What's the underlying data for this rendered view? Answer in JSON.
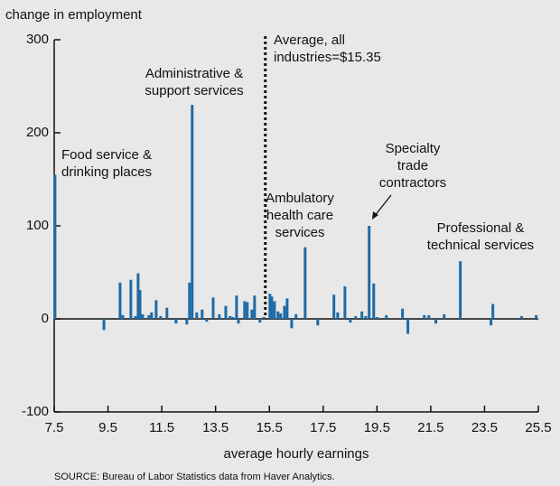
{
  "chart_data": {
    "type": "bar",
    "y_axis_label": "change in employment",
    "x_axis_label": "average hourly earnings",
    "source": "SOURCE: Bureau of Labor Statistics data from Haver Analytics.",
    "color": "#1f6aa5",
    "xlim": [
      7.5,
      25.5
    ],
    "xticks": [
      7.5,
      9.5,
      11.5,
      13.5,
      15.5,
      17.5,
      19.5,
      21.5,
      23.5,
      25.5
    ],
    "ylim": [
      -100,
      300
    ],
    "yticks": [
      -100,
      0,
      100,
      200,
      300
    ],
    "average_x": 15.35,
    "annotations": [
      [
        "Food service &",
        "drinking places"
      ],
      [
        "Administrative &",
        "support services"
      ],
      [
        "Average, all",
        "industries=$15.35"
      ],
      [
        "Ambulatory",
        "health care",
        "services"
      ],
      [
        "Specialty",
        "trade",
        "contractors"
      ],
      [
        "Professional &",
        "technical services"
      ]
    ],
    "x": [
      7.53,
      8.54,
      9.35,
      9.95,
      10.05,
      10.35,
      10.52,
      10.62,
      10.69,
      10.79,
      11.02,
      11.12,
      11.29,
      11.46,
      11.69,
      12.03,
      12.43,
      12.53,
      12.63,
      12.8,
      13.0,
      13.17,
      13.41,
      13.64,
      13.88,
      14.04,
      14.14,
      14.28,
      14.35,
      14.58,
      14.68,
      14.85,
      14.95,
      15.15,
      15.29,
      15.52,
      15.59,
      15.69,
      15.82,
      15.92,
      16.06,
      16.16,
      16.33,
      16.49,
      16.83,
      17.3,
      17.9,
      18.04,
      18.31,
      18.51,
      18.71,
      18.94,
      19.08,
      19.21,
      19.38,
      19.51,
      19.85,
      20.45,
      20.65,
      21.26,
      21.43,
      21.69,
      22.0,
      22.6,
      23.14,
      23.74,
      23.81,
      24.88,
      25.42
    ],
    "values": [
      155,
      1,
      -12,
      39,
      4,
      42,
      3,
      49,
      31,
      5,
      4,
      7,
      20,
      3,
      12,
      -5,
      -6,
      39,
      230,
      7,
      10,
      -3,
      23,
      5,
      14,
      3,
      2,
      25,
      -5,
      19,
      18,
      10,
      25,
      -4,
      2,
      27,
      24,
      19,
      8,
      6,
      14,
      22,
      -10,
      5,
      77,
      -7,
      26,
      7,
      35,
      -4,
      3,
      8,
      3,
      100,
      38,
      2,
      4,
      11,
      -16,
      4,
      4,
      -5,
      5,
      62,
      1,
      -7,
      16,
      3,
      4
    ]
  }
}
